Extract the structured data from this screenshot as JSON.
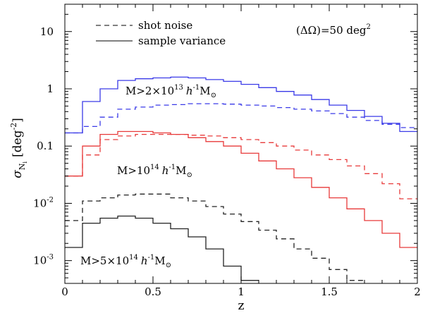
{
  "chart_data": {
    "type": "step",
    "title": "",
    "xlabel": "z",
    "ylabel": "σ_{N_i} [deg^-2]",
    "ylabel_parts": {
      "sigma": "σ",
      "sub": "N",
      "subsub": "i",
      "unit": "[deg",
      "exp": "-2",
      "close": "]"
    },
    "xlim": [
      0,
      2
    ],
    "ylim": [
      0.0004,
      30
    ],
    "yscale": "log",
    "x_ticks": [
      0,
      0.5,
      1,
      1.5,
      2
    ],
    "x_tick_labels": [
      "0",
      "0.5",
      "1",
      "1.5",
      "2"
    ],
    "y_ticks": [
      0.001,
      0.01,
      0.1,
      1,
      10
    ],
    "y_tick_labels": [
      {
        "base": "10",
        "exp": "-3"
      },
      {
        "base": "10",
        "exp": "-2"
      },
      {
        "base": "0.1",
        "exp": ""
      },
      {
        "base": "1",
        "exp": ""
      },
      {
        "base": "10",
        "exp": ""
      }
    ],
    "bin_edges": [
      0,
      0.1,
      0.2,
      0.3,
      0.4,
      0.5,
      0.6,
      0.7,
      0.8,
      0.9,
      1.0,
      1.1,
      1.2,
      1.3,
      1.4,
      1.5,
      1.6,
      1.7,
      1.8,
      1.9,
      2.0
    ],
    "series": [
      {
        "name": "M>2×10^13 shot noise",
        "mass_cut": "2e13",
        "style": "dashed",
        "color": "#3a3ae8",
        "values": [
          0.17,
          0.22,
          0.32,
          0.44,
          0.48,
          0.52,
          0.53,
          0.55,
          0.55,
          0.54,
          0.52,
          0.5,
          0.47,
          0.44,
          0.41,
          0.37,
          0.32,
          0.28,
          0.24,
          0.21
        ]
      },
      {
        "name": "M>2×10^13 sample variance",
        "mass_cut": "2e13",
        "style": "solid",
        "color": "#3a3ae8",
        "values": [
          0.17,
          0.6,
          1.0,
          1.4,
          1.5,
          1.55,
          1.6,
          1.55,
          1.45,
          1.35,
          1.2,
          1.05,
          0.9,
          0.78,
          0.65,
          0.52,
          0.42,
          0.33,
          0.25,
          0.18
        ]
      },
      {
        "name": "M>10^14 shot noise",
        "mass_cut": "1e14",
        "style": "dashed",
        "color": "#e83a3a",
        "values": [
          0.03,
          0.07,
          0.13,
          0.15,
          0.16,
          0.16,
          0.16,
          0.155,
          0.15,
          0.14,
          0.13,
          0.115,
          0.1,
          0.085,
          0.07,
          0.058,
          0.045,
          0.033,
          0.022,
          0.012
        ]
      },
      {
        "name": "M>10^14 sample variance",
        "mass_cut": "1e14",
        "style": "solid",
        "color": "#e83a3a",
        "values": [
          0.03,
          0.1,
          0.16,
          0.18,
          0.18,
          0.17,
          0.16,
          0.14,
          0.12,
          0.1,
          0.075,
          0.055,
          0.04,
          0.028,
          0.019,
          0.0125,
          0.008,
          0.005,
          0.003,
          0.0017
        ]
      },
      {
        "name": "M>5×10^14 shot noise",
        "mass_cut": "5e14",
        "style": "dashed",
        "color": "#222222",
        "values": [
          0.005,
          0.011,
          0.0125,
          0.014,
          0.0145,
          0.0145,
          0.0125,
          0.011,
          0.0088,
          0.0065,
          0.0048,
          0.0034,
          0.0024,
          0.0016,
          0.0011,
          0.0007,
          0.00045
        ]
      },
      {
        "name": "M>5×10^14 sample variance",
        "mass_cut": "5e14",
        "style": "solid",
        "color": "#222222",
        "values": [
          0.0017,
          0.0045,
          0.0055,
          0.006,
          0.0055,
          0.0045,
          0.0036,
          0.0026,
          0.0016,
          0.0008,
          0.00045
        ]
      }
    ],
    "legend": {
      "position": "top-left",
      "entries": [
        {
          "label": "shot noise",
          "style": "dashed"
        },
        {
          "label": "sample variance",
          "style": "solid"
        }
      ]
    },
    "annotations": {
      "area_prefix": "(ΔΩ)=50 deg",
      "area_exp": "2",
      "blue_label": {
        "prefix": "M>2×10",
        "exp": "13",
        "h": "h",
        "hexp": "-1",
        "msun": "M",
        "sun": "⊙"
      },
      "red_label": {
        "prefix": "M>10",
        "exp": "14",
        "h": "h",
        "hexp": "-1",
        "msun": "M",
        "sun": "⊙"
      },
      "black_label": {
        "prefix": "M>5×10",
        "exp": "14",
        "h": "h",
        "hexp": "-1",
        "msun": "M",
        "sun": "⊙"
      }
    }
  }
}
